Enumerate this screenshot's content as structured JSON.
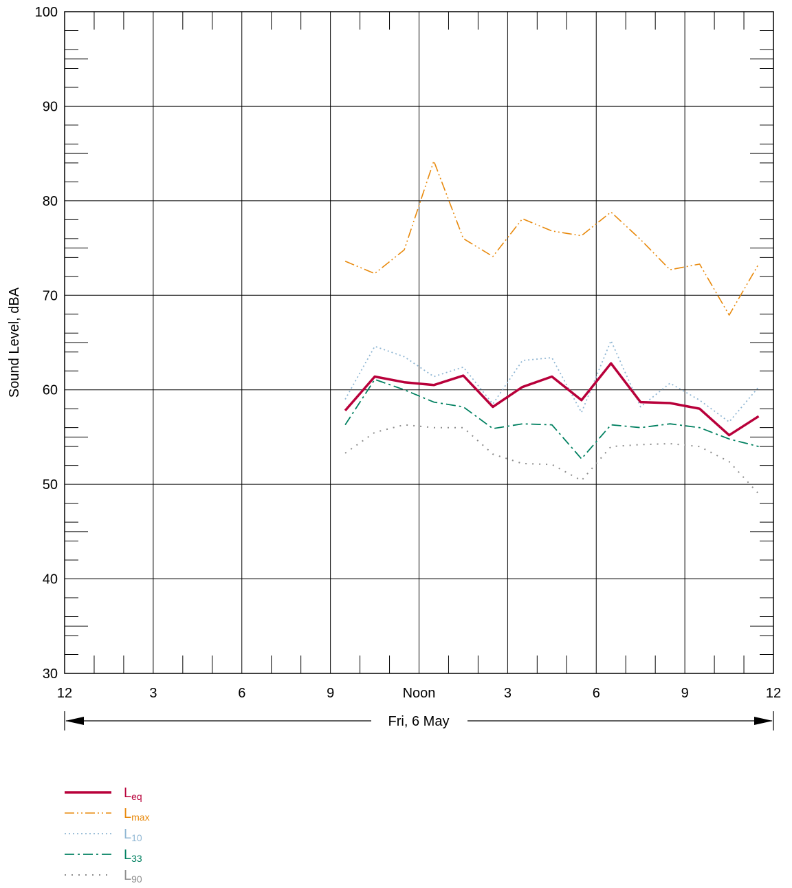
{
  "chart_data": {
    "type": "line",
    "ylabel": "Sound Level, dBA",
    "ylim": [
      30,
      100
    ],
    "yticks": [
      30,
      40,
      50,
      60,
      70,
      80,
      90,
      100
    ],
    "xlim": [
      0,
      24
    ],
    "xticks": [
      {
        "hour": 0,
        "label": "12"
      },
      {
        "hour": 3,
        "label": "3"
      },
      {
        "hour": 6,
        "label": "6"
      },
      {
        "hour": 9,
        "label": "9"
      },
      {
        "hour": 12,
        "label": "Noon"
      },
      {
        "hour": 15,
        "label": "3"
      },
      {
        "hour": 18,
        "label": "6"
      },
      {
        "hour": 21,
        "label": "9"
      },
      {
        "hour": 24,
        "label": "12"
      }
    ],
    "date_label": "Fri, 6 May",
    "grid": true,
    "legend_position": "bottom-left",
    "x": [
      9.5,
      10.5,
      11.5,
      12.5,
      13.5,
      14.5,
      15.5,
      16.5,
      17.5,
      18.5,
      19.5,
      20.5,
      21.5,
      22.5,
      23.5
    ],
    "series": [
      {
        "key": "leq",
        "name_main": "L",
        "name_sub": "eq",
        "color": "#b8003a",
        "values": [
          57.8,
          61.4,
          60.8,
          60.5,
          61.5,
          58.2,
          60.3,
          61.4,
          58.9,
          62.8,
          58.7,
          58.6,
          58.0,
          55.2,
          57.2
        ]
      },
      {
        "key": "lmax",
        "name_main": "L",
        "name_sub": "max",
        "color": "#e8890c",
        "values": [
          73.6,
          72.3,
          74.8,
          84.2,
          76.0,
          74.1,
          78.1,
          76.8,
          76.3,
          78.8,
          75.9,
          72.7,
          73.3,
          67.9,
          73.3
        ]
      },
      {
        "key": "l10",
        "name_main": "L",
        "name_sub": "10",
        "color": "#8fb6d3",
        "values": [
          59.0,
          64.6,
          63.5,
          61.4,
          62.4,
          58.5,
          63.1,
          63.4,
          57.6,
          65.2,
          58.2,
          60.7,
          58.9,
          56.6,
          60.3
        ]
      },
      {
        "key": "l33",
        "name_main": "L",
        "name_sub": "33",
        "color": "#008060",
        "values": [
          56.3,
          61.1,
          60.0,
          58.7,
          58.2,
          55.9,
          56.4,
          56.3,
          52.7,
          56.3,
          56.0,
          56.4,
          56.0,
          54.8,
          54.0
        ]
      },
      {
        "key": "l90",
        "name_main": "L",
        "name_sub": "90",
        "color": "#8c8c8c",
        "values": [
          53.3,
          55.5,
          56.3,
          56.0,
          56.0,
          53.2,
          52.2,
          52.1,
          50.4,
          54.0,
          54.2,
          54.3,
          54.0,
          52.4,
          49.0
        ]
      }
    ]
  }
}
